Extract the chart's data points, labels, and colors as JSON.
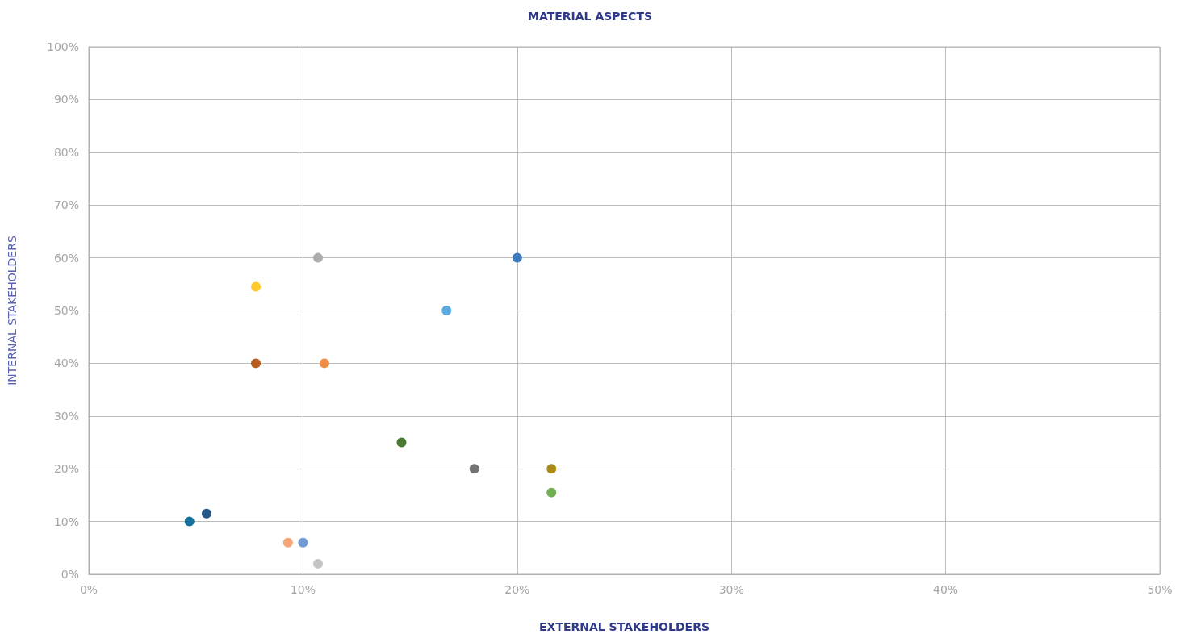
{
  "chart_data": {
    "type": "scatter",
    "title": "MATERIAL ASPECTS",
    "xlabel": "EXTERNAL STAKEHOLDERS",
    "ylabel": "INTERNAL STAKEHOLDERS",
    "x": [
      4.7,
      5.5,
      7.8,
      7.8,
      9.3,
      10,
      10.7,
      10.7,
      11,
      14.6,
      16.7,
      18,
      20,
      21.6,
      21.6
    ],
    "values": [
      10,
      11.5,
      54.5,
      40,
      6,
      6,
      2,
      60,
      40,
      25,
      50,
      20,
      60,
      20,
      15.5
    ],
    "colors": [
      "#14729c",
      "#25588a",
      "#ffca2c",
      "#b85d1f",
      "#f6a577",
      "#6f9bd2",
      "#c4c4c4",
      "#adadad",
      "#f18d44",
      "#4b7a33",
      "#5ba9de",
      "#737373",
      "#3b79bb",
      "#a98a16",
      "#72ae53"
    ],
    "xlim": [
      0,
      50
    ],
    "xticks": [
      {
        "value": 0,
        "label": "0%"
      },
      {
        "value": 10,
        "label": "10%"
      },
      {
        "value": 20,
        "label": "20%"
      },
      {
        "value": 30,
        "label": "30%"
      },
      {
        "value": 40,
        "label": "40%"
      },
      {
        "value": 50,
        "label": "50%"
      }
    ],
    "ylim": [
      0,
      100
    ],
    "yticks": [
      {
        "value": 0,
        "label": "0%"
      },
      {
        "value": 10,
        "label": "10%"
      },
      {
        "value": 20,
        "label": "20%"
      },
      {
        "value": 30,
        "label": "30%"
      },
      {
        "value": 40,
        "label": "40%"
      },
      {
        "value": 50,
        "label": "50%"
      },
      {
        "value": 60,
        "label": "60%"
      },
      {
        "value": 70,
        "label": "70%"
      },
      {
        "value": 80,
        "label": "80%"
      },
      {
        "value": 90,
        "label": "90%"
      },
      {
        "value": 100,
        "label": "100%"
      }
    ],
    "grid": true,
    "marker": "circle"
  }
}
